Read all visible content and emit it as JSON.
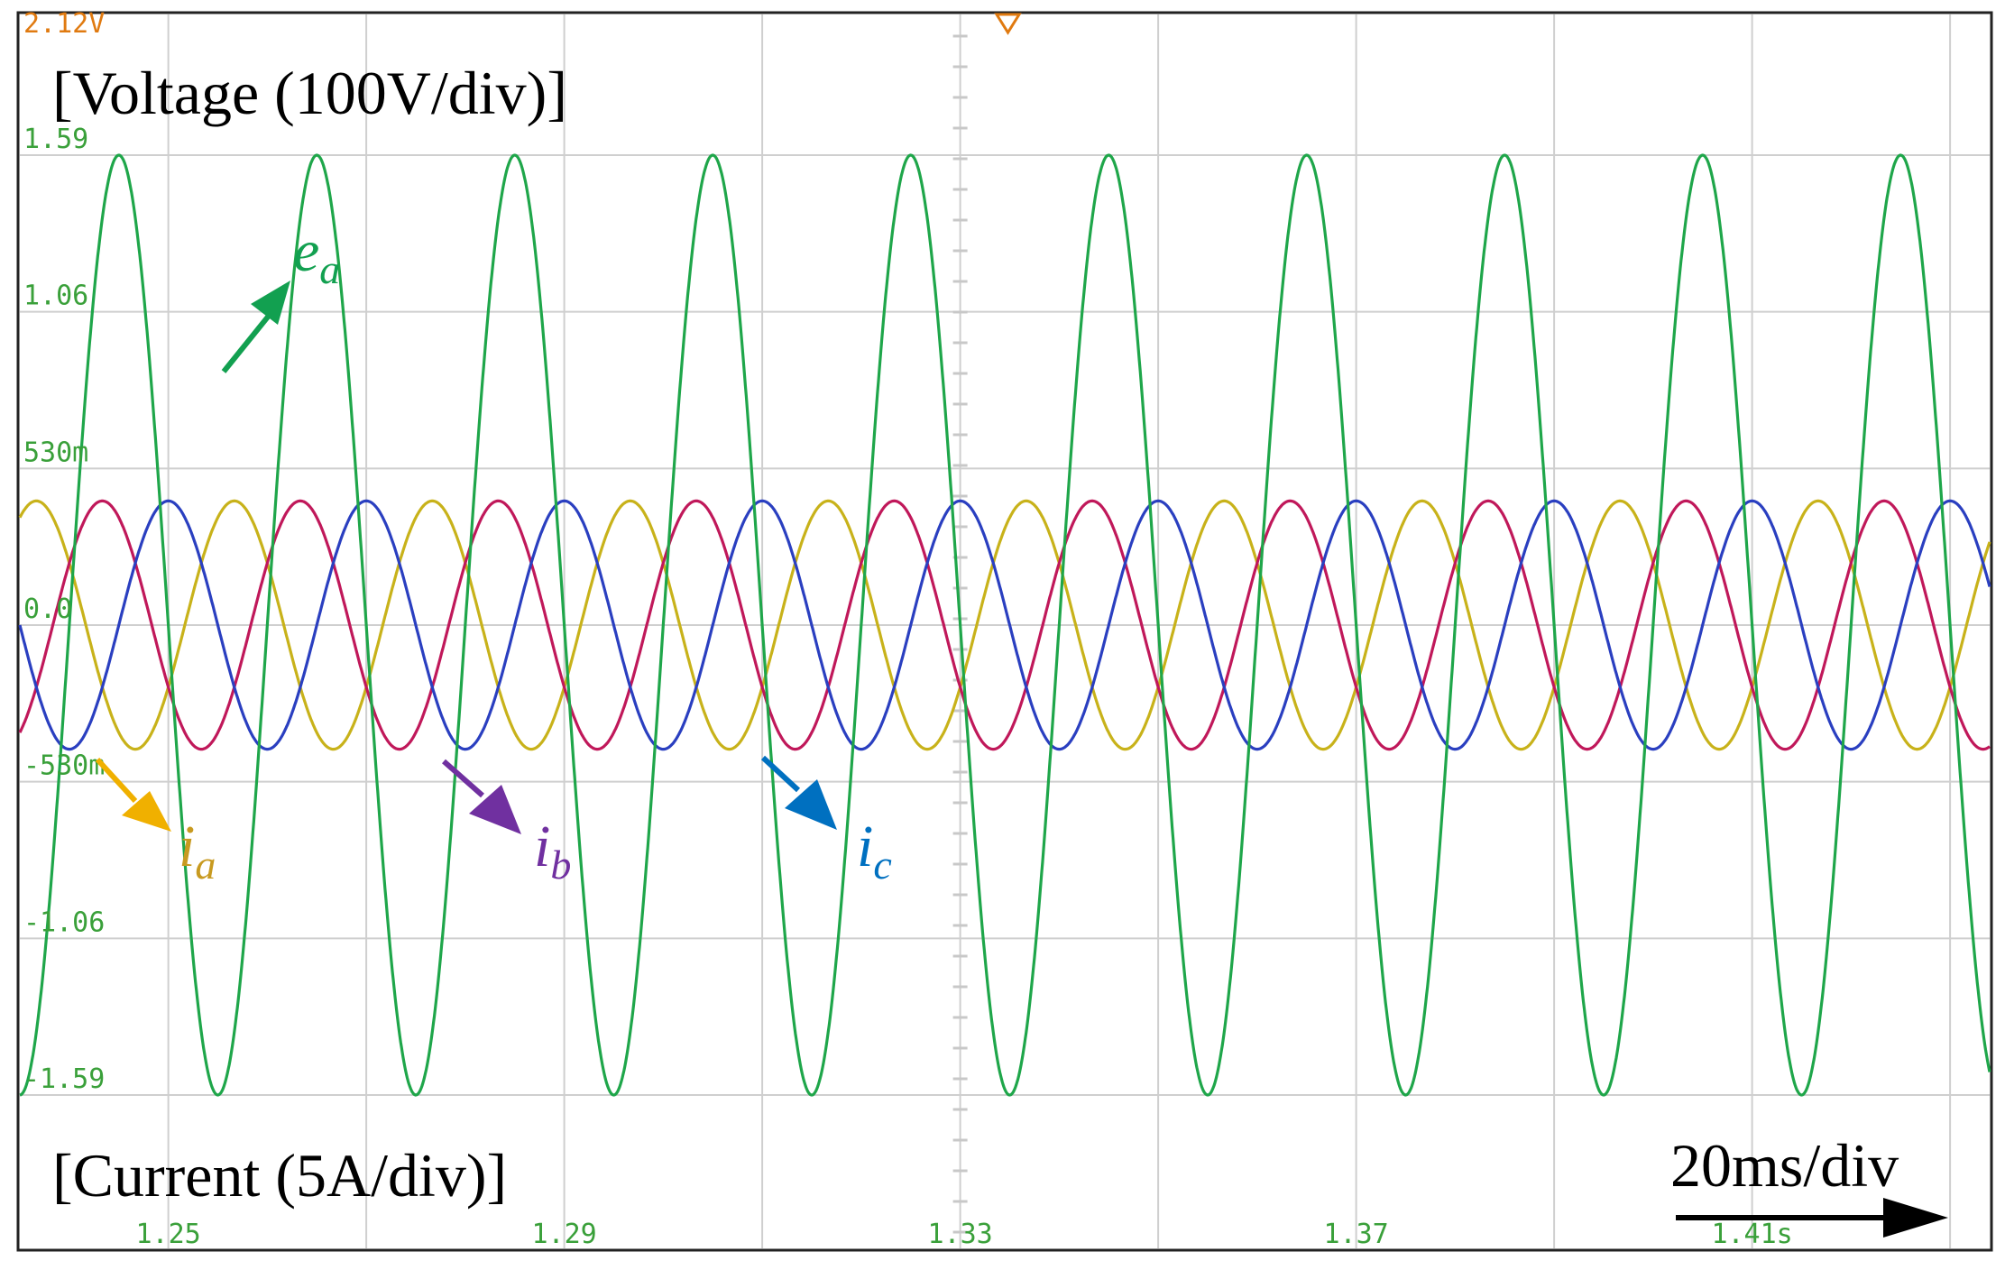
{
  "chart_data": {
    "type": "line",
    "title": "",
    "top_marker": "2.12V",
    "annotations": {
      "voltage_scale": "[Voltage (100V/div)]",
      "current_scale": "[Current (5A/div)]",
      "time_scale": "20ms/div"
    },
    "x_ticks": [
      "1.25",
      "1.29",
      "1.33",
      "1.37",
      "1.41s"
    ],
    "y_ticks": [
      "1.59",
      "1.06",
      "530m",
      "0.0",
      "-530m",
      "-1.06",
      "-1.59"
    ],
    "xlim": [
      1.235,
      1.434
    ],
    "ylim": [
      -1.59,
      2.12
    ],
    "grid": true,
    "series": [
      {
        "name": "e",
        "subscript": "a",
        "color": "#1fa64a",
        "amplitude": 1.59,
        "frequency_hz": 50,
        "phase_deg": 0
      },
      {
        "name": "i",
        "subscript": "a",
        "color": "#c8b21a",
        "amplitude": 0.42,
        "frequency_hz": 50,
        "phase_deg": 150
      },
      {
        "name": "i",
        "subscript": "b",
        "color": "#c0185a",
        "amplitude": 0.42,
        "frequency_hz": 50,
        "phase_deg": 30
      },
      {
        "name": "i",
        "subscript": "c",
        "color": "#2a3fc0",
        "amplitude": 0.42,
        "frequency_hz": 50,
        "phase_deg": -90
      }
    ],
    "label_colors": {
      "e_a": "#12a050",
      "i_a": "#f0b000",
      "i_b": "#7030a0",
      "i_c": "#0070c0"
    }
  }
}
